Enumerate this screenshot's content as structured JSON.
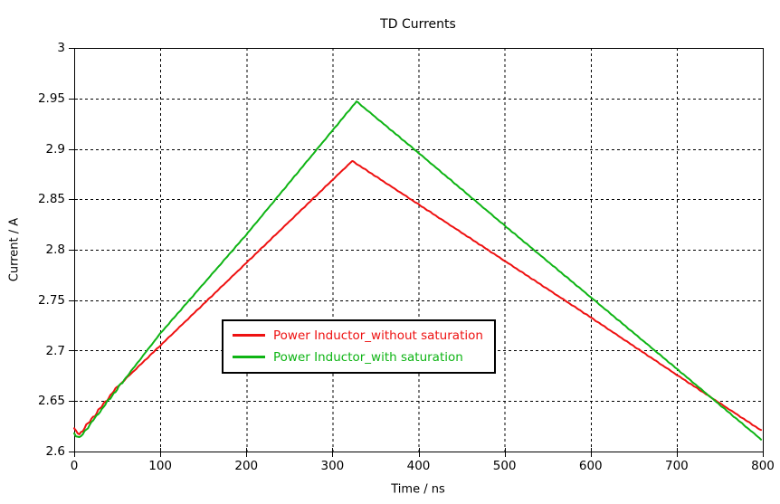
{
  "chart_data": {
    "type": "line",
    "title": "TD Currents",
    "xlabel": "Time / ns",
    "ylabel": "Current / A",
    "xlim": [
      0,
      800
    ],
    "ylim": [
      2.6,
      3.0
    ],
    "x_ticks": [
      0,
      100,
      200,
      300,
      400,
      500,
      600,
      700,
      800
    ],
    "y_ticks": [
      2.6,
      2.65,
      2.7,
      2.75,
      2.8,
      2.85,
      2.9,
      2.95,
      3
    ],
    "grid": "dashed-black",
    "legend_position": "inside-lower-center",
    "background": "#ffffff",
    "axis_color": "#000000",
    "series": [
      {
        "name": "Power Inductor_without saturation",
        "color": "#ee1111",
        "peak": {
          "t": 323,
          "value": 2.888
        },
        "points": [
          [
            0,
            2.622
          ],
          [
            6,
            2.617
          ],
          [
            50,
            2.664
          ],
          [
            100,
            2.705
          ],
          [
            200,
            2.787
          ],
          [
            323,
            2.888
          ],
          [
            400,
            2.845
          ],
          [
            500,
            2.789
          ],
          [
            600,
            2.733
          ],
          [
            700,
            2.676
          ],
          [
            798,
            2.621
          ]
        ]
      },
      {
        "name": "Power Inductor_with saturation",
        "color": "#0eb414",
        "peak": {
          "t": 328,
          "value": 2.947
        },
        "points": [
          [
            0,
            2.618
          ],
          [
            6,
            2.613
          ],
          [
            50,
            2.662
          ],
          [
            100,
            2.717
          ],
          [
            200,
            2.815
          ],
          [
            328,
            2.947
          ],
          [
            400,
            2.896
          ],
          [
            500,
            2.824
          ],
          [
            600,
            2.753
          ],
          [
            700,
            2.682
          ],
          [
            798,
            2.612
          ]
        ]
      }
    ],
    "jitter": {
      "amplitude_start": 0.0016,
      "amplitude_end": 0.00045,
      "start_zone_ns": 60
    }
  }
}
